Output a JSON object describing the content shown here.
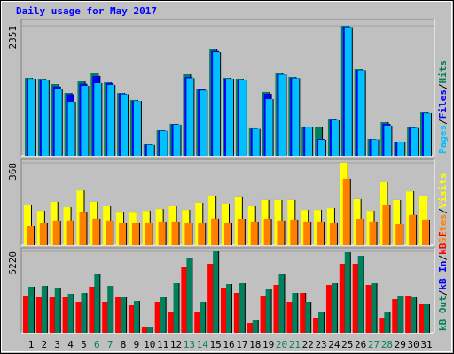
{
  "chart_data": [
    {
      "type": "bar",
      "title": "Daily usage for May 2017",
      "title_color": "#0000ff",
      "ylim": [
        0,
        2351
      ],
      "yticks": [
        2351
      ],
      "separator": "/",
      "series": [
        {
          "name": "Hits",
          "color": "#00805c",
          "values": [
            1407,
            1391,
            1295,
            1135,
            1343,
            1503,
            1327,
            1135,
            1008,
            208,
            464,
            576,
            1471,
            1215,
            1935,
            1407,
            1391,
            496,
            1152,
            1487,
            1423,
            528,
            528,
            656,
            2351,
            1567,
            304,
            608,
            256,
            512,
            784
          ]
        },
        {
          "name": "Files",
          "color": "#0000ff",
          "values": [
            1390,
            1375,
            1250,
            1110,
            1300,
            1440,
            1310,
            1120,
            990,
            200,
            455,
            565,
            1420,
            1195,
            1890,
            1390,
            1375,
            488,
            1120,
            1470,
            1405,
            520,
            300,
            645,
            2320,
            1550,
            298,
            576,
            250,
            505,
            770
          ]
        },
        {
          "name": "Pages",
          "color": "#00c0ff",
          "values": [
            1390,
            1375,
            1200,
            975,
            1263,
            1311,
            1279,
            1110,
            990,
            195,
            450,
            560,
            1400,
            1180,
            1870,
            1390,
            1375,
            485,
            1023,
            1465,
            1400,
            515,
            288,
            640,
            2310,
            1545,
            295,
            545,
            248,
            500,
            765
          ]
        }
      ]
    },
    {
      "type": "bar",
      "ylim": [
        0,
        368
      ],
      "yticks": [
        368
      ],
      "separator": "/",
      "series": [
        {
          "name": "Visits",
          "color": "#ffff00",
          "values": [
            178,
            154,
            194,
            170,
            245,
            194,
            174,
            146,
            146,
            154,
            162,
            174,
            158,
            190,
            218,
            186,
            214,
            174,
            202,
            202,
            202,
            158,
            158,
            166,
            368,
            206,
            154,
            281,
            202,
            241,
            218
          ]
        },
        {
          "name": "Sites",
          "color": "#ff8000",
          "values": [
            87,
            99,
            107,
            107,
            146,
            119,
            107,
            99,
            99,
            99,
            103,
            103,
            99,
            99,
            119,
            99,
            115,
            103,
            115,
            107,
            111,
            103,
            103,
            99,
            297,
            115,
            103,
            178,
            95,
            135,
            111
          ]
        }
      ]
    },
    {
      "type": "bar",
      "ylim": [
        0,
        5220
      ],
      "yticks": [
        5220
      ],
      "separator": "/",
      "legend": [
        {
          "label": "kB Out",
          "color": "#00805c"
        },
        {
          "label": "kB In",
          "color": "#0000ff"
        },
        {
          "label": "kB F",
          "color": "#ff0000"
        }
      ],
      "series": [
        {
          "name": "kB F",
          "color": "#ff0000",
          "values": [
            2381,
            2268,
            2268,
            2268,
            1985,
            2948,
            1985,
            2268,
            1758,
            340,
            1985,
            1361,
            4196,
            1361,
            4423,
            2892,
            2552,
            624,
            2381,
            3062,
            1985,
            2552,
            964,
            3062,
            4423,
            4423,
            3062,
            964,
            2155,
            2381,
            1815
          ]
        },
        {
          "name": "kB Out",
          "color": "#00805c",
          "values": [
            2948,
            3005,
            2892,
            2495,
            2552,
            3742,
            3005,
            2268,
            2041,
            397,
            2268,
            3175,
            4763,
            1985,
            5220,
            3119,
            3175,
            794,
            2835,
            3742,
            2552,
            1985,
            1361,
            3175,
            5160,
            4933,
            3175,
            1361,
            2325,
            2268,
            1815
          ]
        }
      ],
      "categories": [
        "1",
        "2",
        "3",
        "4",
        "5",
        "6",
        "7",
        "8",
        "9",
        "10",
        "11",
        "12",
        "13",
        "14",
        "15",
        "16",
        "17",
        "18",
        "19",
        "20",
        "21",
        "22",
        "23",
        "24",
        "25",
        "26",
        "27",
        "28",
        "29",
        "30",
        "31"
      ],
      "category_colors": [
        "#000000",
        "#000000",
        "#000000",
        "#000000",
        "#000000",
        "#00805c",
        "#00805c",
        "#000000",
        "#000000",
        "#000000",
        "#000000",
        "#000000",
        "#00805c",
        "#00805c",
        "#000000",
        "#000000",
        "#000000",
        "#000000",
        "#000000",
        "#00805c",
        "#00805c",
        "#000000",
        "#000000",
        "#000000",
        "#000000",
        "#000000",
        "#00805c",
        "#00805c",
        "#000000",
        "#000000",
        "#000000"
      ]
    }
  ]
}
